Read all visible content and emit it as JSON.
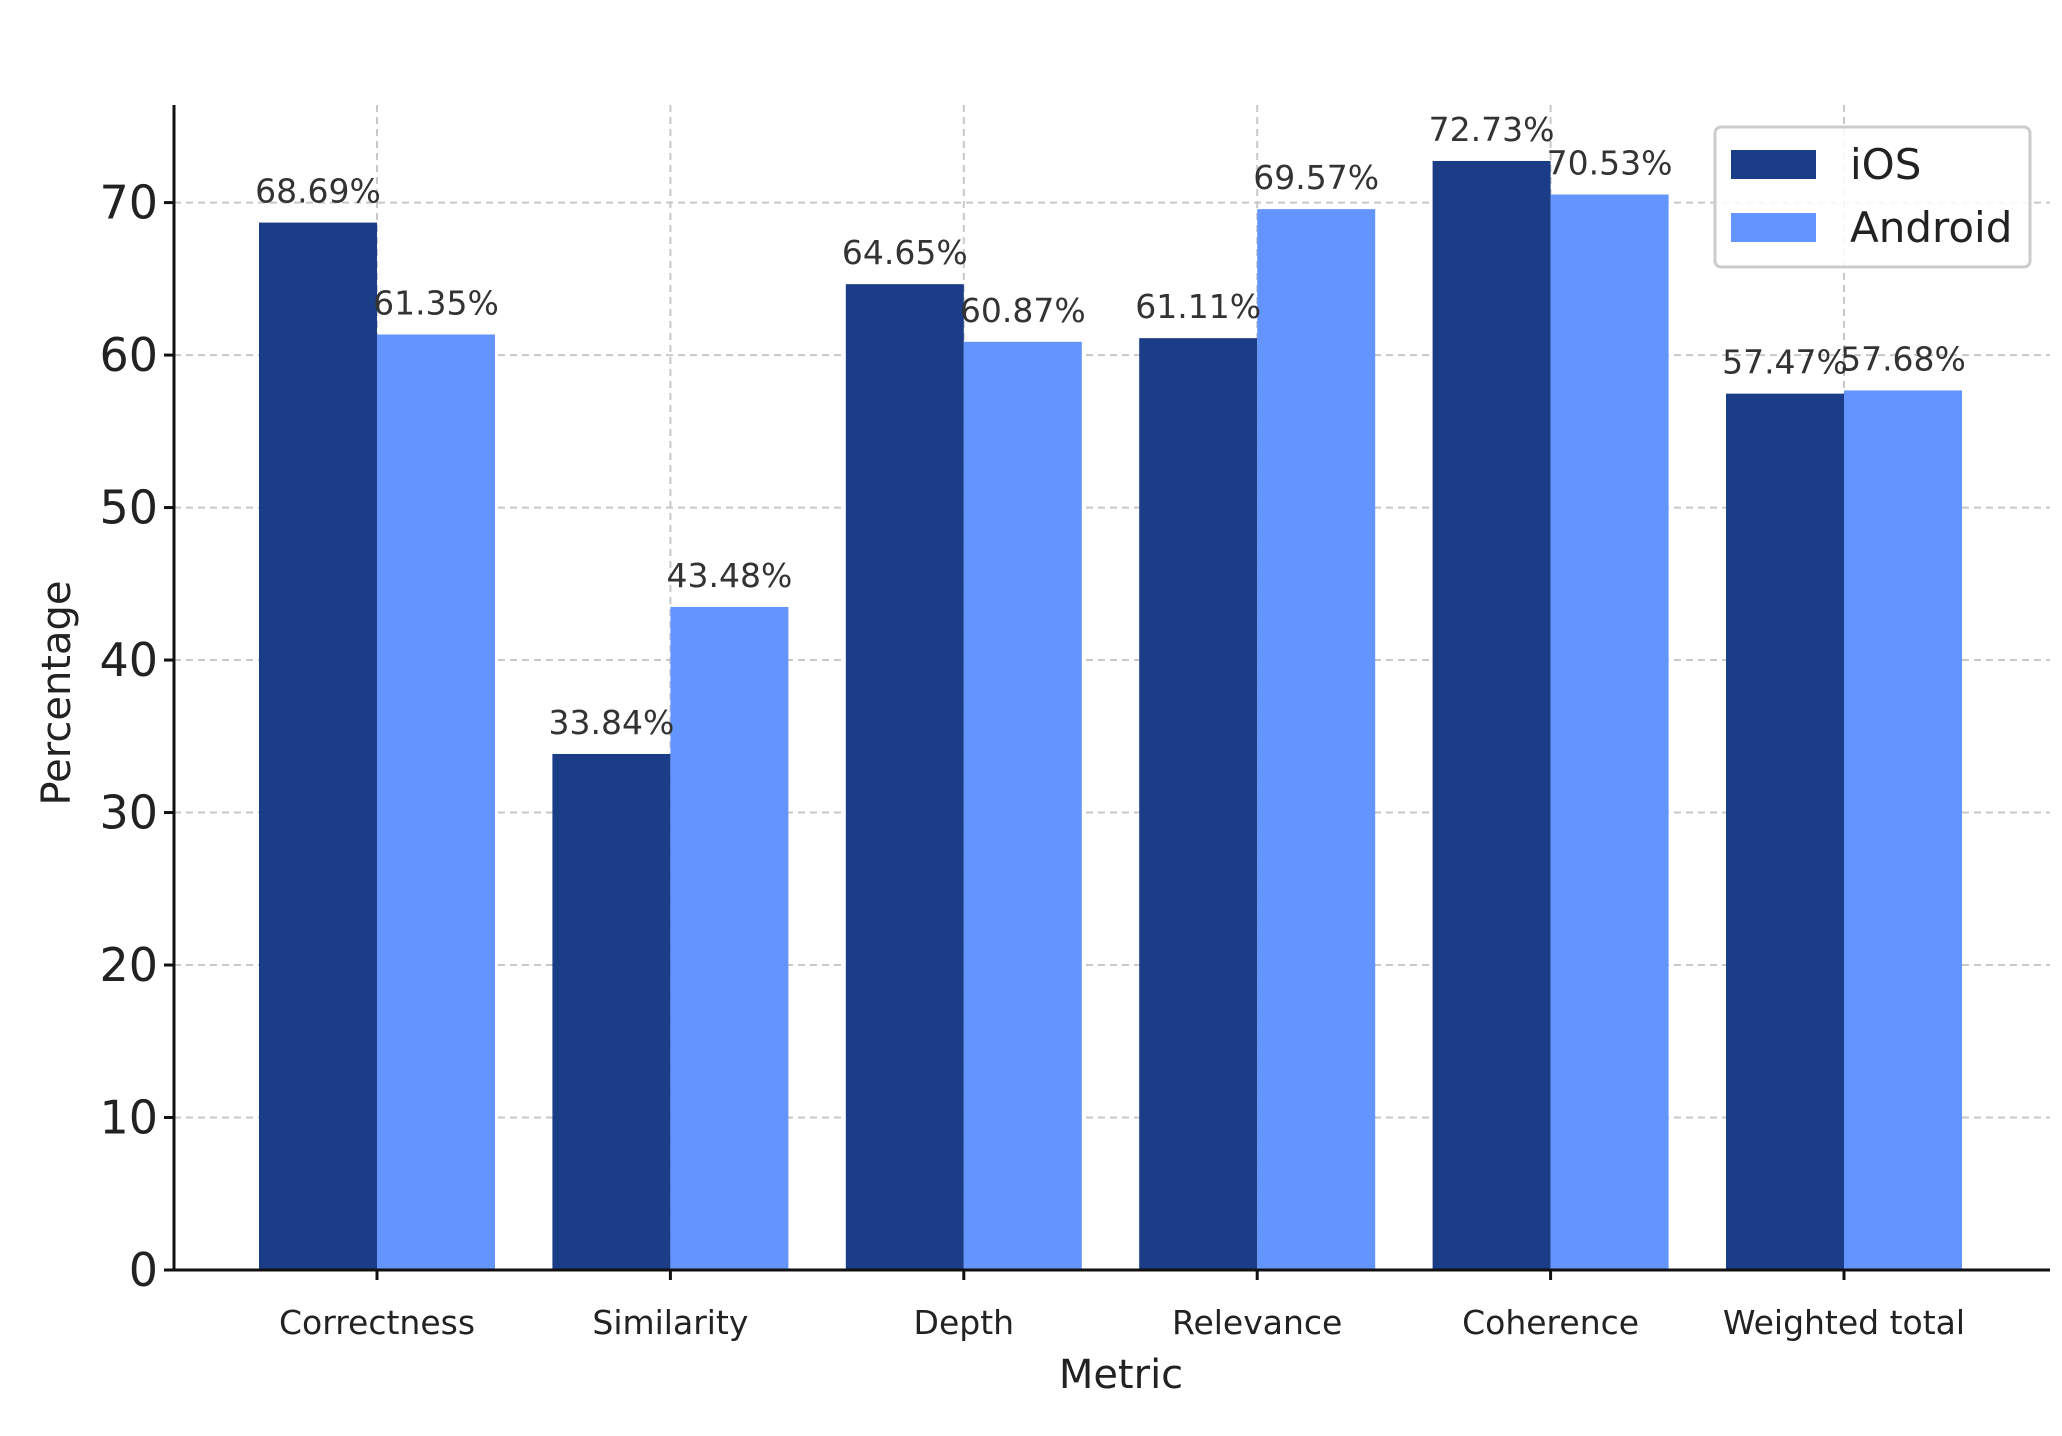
{
  "chart_data": {
    "type": "bar",
    "categories": [
      "Correctness",
      "Similarity",
      "Depth",
      "Relevance",
      "Coherence",
      "Weighted total"
    ],
    "series": [
      {
        "name": "iOS",
        "color": "#1b3c87",
        "values": [
          68.69,
          33.84,
          64.65,
          61.11,
          72.73,
          57.47
        ],
        "labels": [
          "68.69%",
          "33.84%",
          "64.65%",
          "61.11%",
          "72.73%",
          "57.47%"
        ]
      },
      {
        "name": "Android",
        "color": "#6495fe",
        "values": [
          61.35,
          43.48,
          60.87,
          69.57,
          70.53,
          57.68
        ],
        "labels": [
          "61.35%",
          "43.48%",
          "60.87%",
          "69.57%",
          "70.53%",
          "57.68%"
        ]
      }
    ],
    "xlabel": "Metric",
    "ylabel": "Percentage",
    "ylim": [
      0,
      76.4
    ],
    "yticks": [
      "0",
      "10",
      "20",
      "30",
      "40",
      "50",
      "60",
      "70"
    ],
    "grid": true,
    "legend_position": "top-right"
  }
}
